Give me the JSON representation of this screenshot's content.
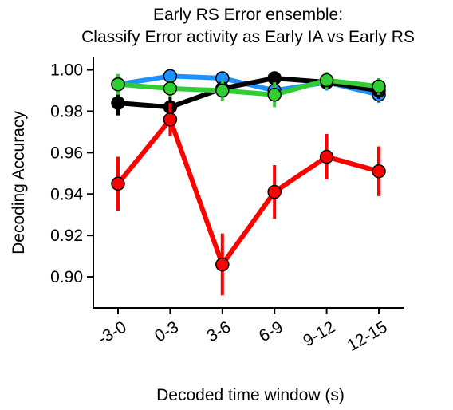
{
  "chart_data": {
    "type": "line",
    "title": [
      "Early RS Error ensemble:",
      "Classify Error activity as Early IA vs Early RS"
    ],
    "xlabel": "Decoded time window (s)",
    "ylabel": "Decoding Accuracy",
    "categories": [
      "-3-0",
      "0-3",
      "3-6",
      "6-9",
      "9-12",
      "12-15"
    ],
    "ylim": [
      0.885,
      1.006
    ],
    "yticks": [
      "0.90",
      "0.92",
      "0.94",
      "0.96",
      "0.98",
      "1.00"
    ],
    "grid": false,
    "legend": "none",
    "series": [
      {
        "color": "#1e90ff",
        "values": [
          0.993,
          0.997,
          0.996,
          0.99,
          0.994,
          0.988
        ],
        "err": [
          0.003,
          0.002,
          0.003,
          0.004,
          0.004,
          0.004
        ]
      },
      {
        "color": "#000000",
        "values": [
          0.984,
          0.982,
          0.991,
          0.996,
          0.994,
          0.99
        ],
        "err": [
          0.006,
          0.007,
          0.004,
          0.003,
          0.003,
          0.004
        ]
      },
      {
        "color": "#ff0000",
        "values": [
          0.945,
          0.976,
          0.906,
          0.941,
          0.958,
          0.951
        ],
        "err": [
          0.013,
          0.008,
          0.015,
          0.013,
          0.011,
          0.012
        ]
      },
      {
        "color": "#32cd32",
        "values": [
          0.993,
          0.991,
          0.99,
          0.988,
          0.995,
          0.992
        ],
        "err": [
          0.005,
          0.004,
          0.005,
          0.006,
          0.004,
          0.004
        ]
      }
    ]
  }
}
